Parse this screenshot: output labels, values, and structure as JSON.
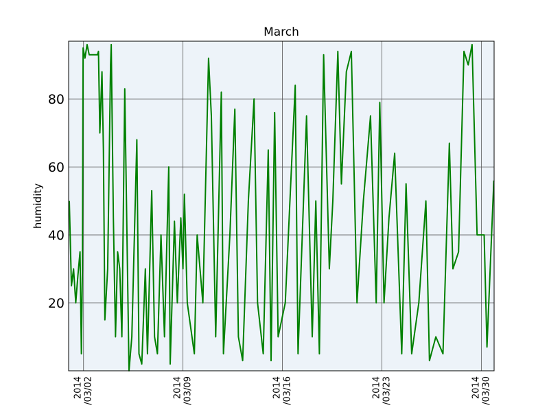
{
  "chart_data": {
    "type": "line",
    "title": "March",
    "y_label": "humidity",
    "x": [
      1.0,
      1.15,
      1.3,
      1.45,
      1.6,
      1.75,
      1.85,
      1.92,
      1.97,
      2.1,
      2.25,
      2.4,
      2.98,
      3.05,
      3.15,
      3.3,
      3.4,
      3.5,
      3.7,
      3.9,
      3.95,
      4.1,
      4.25,
      4.4,
      4.55,
      4.7,
      4.9,
      5.2,
      5.4,
      5.75,
      5.9,
      6.1,
      6.35,
      6.5,
      6.8,
      7.0,
      7.2,
      7.45,
      7.7,
      8.0,
      8.1,
      8.4,
      8.6,
      8.85,
      9.0,
      9.1,
      9.3,
      9.8,
      10.0,
      10.4,
      10.8,
      11.0,
      11.3,
      11.7,
      11.85,
      12.3,
      12.65,
      12.9,
      13.2,
      13.6,
      14.0,
      14.25,
      14.65,
      15.0,
      15.2,
      15.45,
      15.7,
      16.2,
      16.9,
      17.1,
      17.4,
      17.7,
      18.1,
      18.35,
      18.6,
      18.9,
      19.3,
      19.55,
      19.9,
      20.15,
      20.5,
      20.85,
      21.25,
      21.7,
      22.2,
      22.6,
      22.85,
      23.15,
      23.5,
      23.9,
      24.4,
      24.7,
      25.1,
      25.6,
      26.1,
      26.35,
      26.8,
      27.3,
      27.75,
      28.0,
      28.4,
      28.78,
      29.08,
      29.35,
      29.7,
      30.2,
      30.4,
      30.88
    ],
    "series": [
      {
        "name": "humidity",
        "color": "#008000",
        "values": [
          50,
          25,
          30,
          20,
          28,
          35,
          5,
          30,
          95,
          92,
          96,
          93,
          93,
          94,
          70,
          88,
          65,
          15,
          30,
          90,
          96,
          45,
          10,
          35,
          30,
          10,
          83,
          0,
          10,
          68,
          5,
          2,
          30,
          5,
          53,
          10,
          5,
          40,
          10,
          60,
          2,
          44,
          20,
          45,
          30,
          52,
          20,
          5,
          40,
          20,
          92,
          75,
          10,
          82,
          5,
          40,
          77,
          10,
          3,
          50,
          80,
          20,
          5,
          65,
          3,
          76,
          10,
          20,
          84,
          5,
          40,
          75,
          10,
          50,
          5,
          93,
          30,
          50,
          94,
          55,
          88,
          94,
          20,
          50,
          75,
          20,
          79,
          20,
          45,
          64,
          5,
          55,
          5,
          20,
          50,
          3,
          10,
          5,
          67,
          30,
          35,
          94,
          90,
          96,
          40,
          40,
          7,
          56
        ]
      }
    ],
    "xlim": [
      0.95,
      30.9
    ],
    "ylim": [
      0,
      97
    ],
    "xticks": [
      {
        "value": 2,
        "label": "2014\n/03/02"
      },
      {
        "value": 9,
        "label": "2014\n/03/09"
      },
      {
        "value": 16,
        "label": "2014\n/03/16"
      },
      {
        "value": 23,
        "label": "2014\n/03/23"
      },
      {
        "value": 30,
        "label": "2014\n/03/30"
      }
    ],
    "yticks": [
      20,
      40,
      60,
      80
    ],
    "grid": true
  }
}
